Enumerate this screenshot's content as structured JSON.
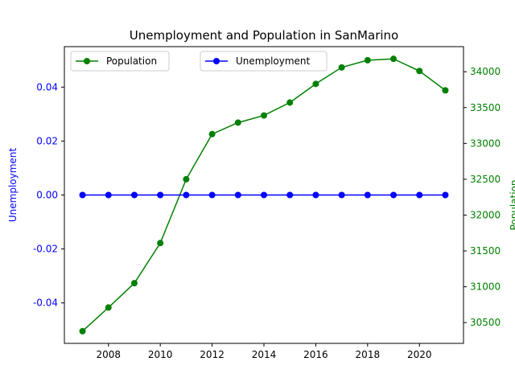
{
  "chart_data": {
    "type": "line",
    "title": "Unemployment and Population in SanMarino",
    "xlabel": "",
    "x": [
      2007,
      2008,
      2009,
      2010,
      2011,
      2012,
      2013,
      2014,
      2015,
      2016,
      2017,
      2018,
      2019,
      2020,
      2021
    ],
    "x_ticks": [
      "2008",
      "2010",
      "2012",
      "2014",
      "2016",
      "2018",
      "2020"
    ],
    "xlim": [
      2006.3,
      2021.7
    ],
    "left_axis": {
      "label": "Unemployment",
      "color": "#0000ff",
      "ylim": [
        -0.055,
        0.055
      ],
      "ticks": [
        "-0.04",
        "-0.02",
        "0.00",
        "0.02",
        "0.04"
      ]
    },
    "right_axis": {
      "label": "Population",
      "color": "#008000",
      "ylim": [
        30210,
        34350
      ],
      "ticks": [
        "30500",
        "31000",
        "31500",
        "32000",
        "32500",
        "33000",
        "33500",
        "34000"
      ]
    },
    "series": [
      {
        "name": "Population",
        "axis": "right",
        "color": "#008000",
        "marker": "circle",
        "values": [
          30380,
          30710,
          31050,
          31610,
          32500,
          33130,
          33290,
          33390,
          33570,
          33830,
          34060,
          34160,
          34180,
          34010,
          33740
        ]
      },
      {
        "name": "Unemployment",
        "axis": "left",
        "color": "#0000ff",
        "marker": "circle",
        "values": [
          0,
          0,
          0,
          0,
          0,
          0,
          0,
          0,
          0,
          0,
          0,
          0,
          0,
          0,
          0
        ]
      }
    ],
    "legends": [
      {
        "placement": "upper-left",
        "entries": [
          "Population"
        ]
      },
      {
        "placement": "upper-center",
        "entries": [
          "Unemployment"
        ]
      }
    ],
    "grid": false
  }
}
